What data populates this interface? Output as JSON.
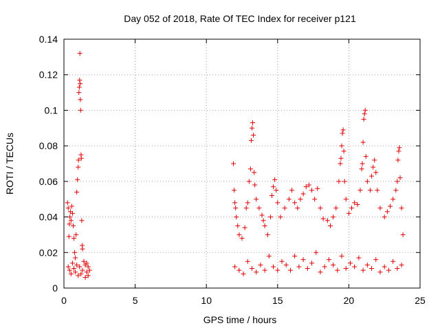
{
  "chart_data": {
    "type": "scatter",
    "title": "Day 052 of 2018, Rate Of TEC Index for receiver p121",
    "xlabel": "GPS time / hours",
    "ylabel": "ROTI / TECUs",
    "xlim": [
      0,
      25
    ],
    "ylim": [
      0,
      0.14
    ],
    "x_ticks": [
      0,
      5,
      10,
      15,
      20,
      25
    ],
    "y_ticks": [
      0,
      0.02,
      0.04,
      0.06,
      0.08,
      0.1,
      0.12,
      0.14
    ],
    "x_tick_labels": [
      "0",
      "5",
      "10",
      "15",
      "20",
      "25"
    ],
    "y_tick_labels": [
      "0",
      "0.02",
      "0.04",
      "0.06",
      "0.08",
      "0.1",
      "0.12",
      "0.14"
    ],
    "grid": true,
    "marker": "+",
    "color": "#e00000",
    "series": [
      {
        "name": "p121",
        "points": [
          [
            0.25,
            0.048
          ],
          [
            0.3,
            0.045
          ],
          [
            0.35,
            0.029
          ],
          [
            0.38,
            0.036
          ],
          [
            0.42,
            0.04
          ],
          [
            0.45,
            0.043
          ],
          [
            0.5,
            0.038
          ],
          [
            0.55,
            0.046
          ],
          [
            0.6,
            0.042
          ],
          [
            0.65,
            0.035
          ],
          [
            0.7,
            0.028
          ],
          [
            0.75,
            0.02
          ],
          [
            0.8,
            0.017
          ],
          [
            0.85,
            0.03
          ],
          [
            0.9,
            0.054
          ],
          [
            0.95,
            0.061
          ],
          [
            1.0,
            0.068
          ],
          [
            1.02,
            0.072
          ],
          [
            1.05,
            0.11
          ],
          [
            1.08,
            0.113
          ],
          [
            1.1,
            0.117
          ],
          [
            1.12,
            0.132
          ],
          [
            1.14,
            0.115
          ],
          [
            1.15,
            0.106
          ],
          [
            1.17,
            0.1
          ],
          [
            1.2,
            0.075
          ],
          [
            1.22,
            0.073
          ],
          [
            1.25,
            0.038
          ],
          [
            1.28,
            0.024
          ],
          [
            1.3,
            0.022
          ],
          [
            1.4,
            0.015
          ],
          [
            1.5,
            0.013
          ],
          [
            1.6,
            0.014
          ],
          [
            1.7,
            0.012
          ],
          [
            1.8,
            0.01
          ],
          [
            0.3,
            0.012
          ],
          [
            0.4,
            0.01
          ],
          [
            0.5,
            0.008
          ],
          [
            0.6,
            0.014
          ],
          [
            0.7,
            0.011
          ],
          [
            0.8,
            0.009
          ],
          [
            0.9,
            0.013
          ],
          [
            1.0,
            0.007
          ],
          [
            1.1,
            0.012
          ],
          [
            1.2,
            0.008
          ],
          [
            1.3,
            0.01
          ],
          [
            1.5,
            0.006
          ],
          [
            1.6,
            0.009
          ],
          [
            1.7,
            0.007
          ],
          [
            11.9,
            0.07
          ],
          [
            11.95,
            0.055
          ],
          [
            12.0,
            0.048
          ],
          [
            12.05,
            0.045
          ],
          [
            12.1,
            0.04
          ],
          [
            12.2,
            0.035
          ],
          [
            12.3,
            0.03
          ],
          [
            12.5,
            0.028
          ],
          [
            12.7,
            0.034
          ],
          [
            12.8,
            0.045
          ],
          [
            12.9,
            0.048
          ],
          [
            13.0,
            0.06
          ],
          [
            13.1,
            0.067
          ],
          [
            13.15,
            0.083
          ],
          [
            13.2,
            0.09
          ],
          [
            13.25,
            0.093
          ],
          [
            13.3,
            0.086
          ],
          [
            13.35,
            0.065
          ],
          [
            13.4,
            0.058
          ],
          [
            13.5,
            0.05
          ],
          [
            13.7,
            0.045
          ],
          [
            13.9,
            0.041
          ],
          [
            14.0,
            0.038
          ],
          [
            14.1,
            0.035
          ],
          [
            14.3,
            0.03
          ],
          [
            14.5,
            0.04
          ],
          [
            14.6,
            0.052
          ],
          [
            14.7,
            0.057
          ],
          [
            14.8,
            0.061
          ],
          [
            14.9,
            0.055
          ],
          [
            15.0,
            0.048
          ],
          [
            15.2,
            0.04
          ],
          [
            15.5,
            0.045
          ],
          [
            15.8,
            0.05
          ],
          [
            16.0,
            0.055
          ],
          [
            16.2,
            0.048
          ],
          [
            16.4,
            0.045
          ],
          [
            16.6,
            0.05
          ],
          [
            16.8,
            0.053
          ],
          [
            17.0,
            0.057
          ],
          [
            17.2,
            0.058
          ],
          [
            17.4,
            0.055
          ],
          [
            17.6,
            0.05
          ],
          [
            17.8,
            0.056
          ],
          [
            18.0,
            0.045
          ],
          [
            18.2,
            0.039
          ],
          [
            18.5,
            0.038
          ],
          [
            18.7,
            0.035
          ],
          [
            18.9,
            0.04
          ],
          [
            19.1,
            0.045
          ],
          [
            19.3,
            0.06
          ],
          [
            19.4,
            0.07
          ],
          [
            19.45,
            0.073
          ],
          [
            19.5,
            0.08
          ],
          [
            19.55,
            0.087
          ],
          [
            19.6,
            0.089
          ],
          [
            19.65,
            0.077
          ],
          [
            19.7,
            0.06
          ],
          [
            19.8,
            0.05
          ],
          [
            20.0,
            0.042
          ],
          [
            20.2,
            0.045
          ],
          [
            20.4,
            0.048
          ],
          [
            20.6,
            0.047
          ],
          [
            20.8,
            0.055
          ],
          [
            20.9,
            0.067
          ],
          [
            20.95,
            0.07
          ],
          [
            21.0,
            0.082
          ],
          [
            21.05,
            0.095
          ],
          [
            21.1,
            0.098
          ],
          [
            21.15,
            0.1
          ],
          [
            21.2,
            0.074
          ],
          [
            21.3,
            0.06
          ],
          [
            21.5,
            0.055
          ],
          [
            21.6,
            0.063
          ],
          [
            21.7,
            0.068
          ],
          [
            21.8,
            0.072
          ],
          [
            21.9,
            0.065
          ],
          [
            22.0,
            0.055
          ],
          [
            22.2,
            0.045
          ],
          [
            22.5,
            0.04
          ],
          [
            22.7,
            0.043
          ],
          [
            22.9,
            0.046
          ],
          [
            23.1,
            0.05
          ],
          [
            23.3,
            0.055
          ],
          [
            23.4,
            0.06
          ],
          [
            23.45,
            0.072
          ],
          [
            23.5,
            0.077
          ],
          [
            23.55,
            0.079
          ],
          [
            23.6,
            0.062
          ],
          [
            23.7,
            0.045
          ],
          [
            23.8,
            0.03
          ],
          [
            12.0,
            0.012
          ],
          [
            12.3,
            0.01
          ],
          [
            12.6,
            0.008
          ],
          [
            12.9,
            0.015
          ],
          [
            13.2,
            0.011
          ],
          [
            13.5,
            0.009
          ],
          [
            13.8,
            0.013
          ],
          [
            14.1,
            0.01
          ],
          [
            14.4,
            0.018
          ],
          [
            14.7,
            0.012
          ],
          [
            15.0,
            0.01
          ],
          [
            15.3,
            0.015
          ],
          [
            15.6,
            0.013
          ],
          [
            15.9,
            0.01
          ],
          [
            16.2,
            0.018
          ],
          [
            16.5,
            0.012
          ],
          [
            16.8,
            0.016
          ],
          [
            17.1,
            0.011
          ],
          [
            17.4,
            0.014
          ],
          [
            17.7,
            0.02
          ],
          [
            18.0,
            0.009
          ],
          [
            18.3,
            0.012
          ],
          [
            18.6,
            0.016
          ],
          [
            18.9,
            0.013
          ],
          [
            19.2,
            0.01
          ],
          [
            19.5,
            0.018
          ],
          [
            19.8,
            0.011
          ],
          [
            20.1,
            0.014
          ],
          [
            20.4,
            0.012
          ],
          [
            20.7,
            0.017
          ],
          [
            21.0,
            0.01
          ],
          [
            21.3,
            0.013
          ],
          [
            21.6,
            0.011
          ],
          [
            21.9,
            0.016
          ],
          [
            22.2,
            0.009
          ],
          [
            22.5,
            0.012
          ],
          [
            22.8,
            0.01
          ],
          [
            23.1,
            0.015
          ],
          [
            23.4,
            0.011
          ],
          [
            23.7,
            0.013
          ]
        ]
      }
    ]
  }
}
